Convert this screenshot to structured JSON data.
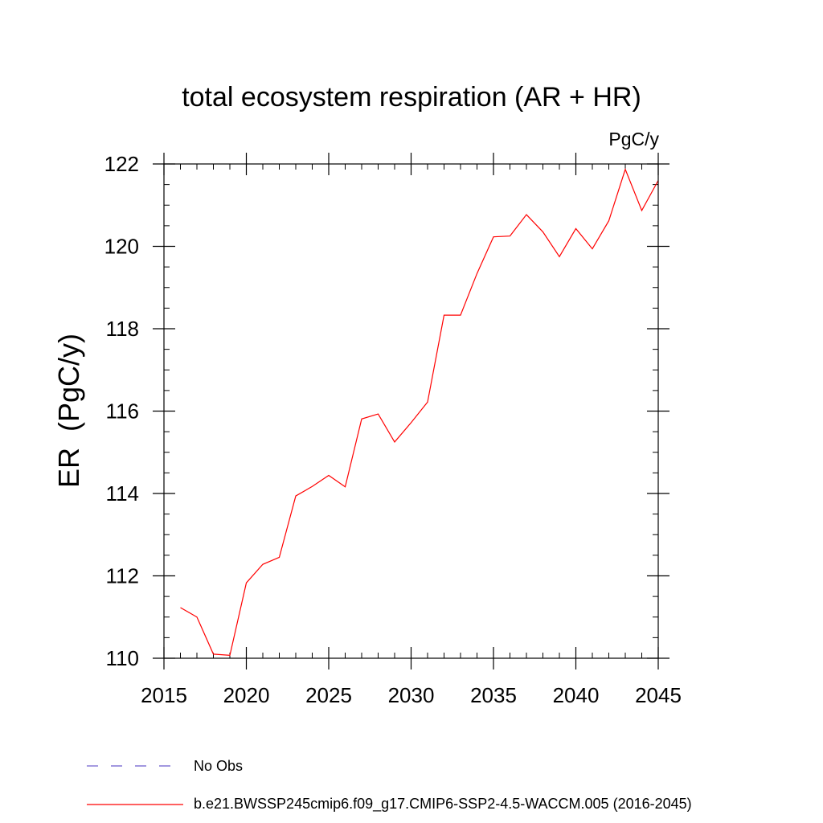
{
  "chart_data": {
    "type": "line",
    "title": "total ecosystem respiration (AR + HR)",
    "units_label": "PgC/y",
    "ylabel": "ER  (PgC/y)",
    "xlabel": "",
    "xlim": [
      2015,
      2045
    ],
    "ylim": [
      110,
      122
    ],
    "xticks": [
      2015,
      2020,
      2025,
      2030,
      2035,
      2040,
      2045
    ],
    "yticks": [
      110,
      112,
      114,
      116,
      118,
      120,
      122
    ],
    "x_minor_step": 1,
    "y_minor_step": 0.5,
    "grid": false,
    "legend_position": "bottom-left, below plot",
    "series": [
      {
        "name": "b.e21.BWSSP245cmip6.f09_g17.CMIP6-SSP2-4.5-WACCM.005 (2016-2045)",
        "color": "#ff0000",
        "line_style": "solid",
        "x": [
          2016,
          2017,
          2018,
          2019,
          2020,
          2021,
          2022,
          2023,
          2024,
          2025,
          2026,
          2027,
          2028,
          2029,
          2030,
          2031,
          2032,
          2033,
          2034,
          2035,
          2036,
          2037,
          2038,
          2039,
          2040,
          2041,
          2042,
          2043,
          2044,
          2045
        ],
        "y": [
          111.23,
          111.0,
          110.1,
          110.07,
          111.83,
          112.28,
          112.45,
          113.94,
          114.17,
          114.44,
          114.16,
          115.81,
          115.93,
          115.25,
          115.72,
          116.22,
          118.33,
          118.33,
          119.34,
          120.23,
          120.25,
          120.77,
          120.35,
          119.75,
          120.43,
          119.94,
          120.62,
          121.87,
          120.87,
          121.6
        ]
      }
    ],
    "legend": [
      {
        "label": "No Obs",
        "color": "#6a5acd",
        "line_style": "dashed"
      },
      {
        "label": "b.e21.BWSSP245cmip6.f09_g17.CMIP6-SSP2-4.5-WACCM.005 (2016-2045)",
        "color": "#ff0000",
        "line_style": "solid"
      }
    ]
  }
}
